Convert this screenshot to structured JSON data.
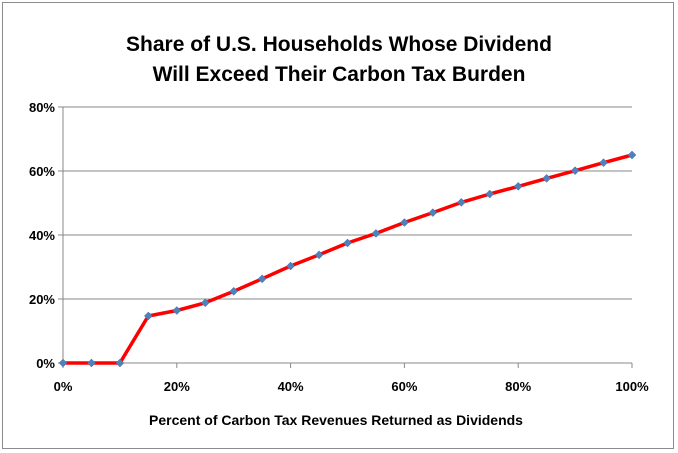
{
  "chart_data": {
    "type": "line",
    "title_line1": "Share of U.S. Households Whose Dividend",
    "title_line2": "Will Exceed Their Carbon Tax Burden",
    "xlabel": "Percent of Carbon Tax Revenues Returned as Dividends",
    "ylabel": "",
    "xlim": [
      0,
      100
    ],
    "ylim": [
      0,
      80
    ],
    "x_ticks": [
      0,
      20,
      40,
      60,
      80,
      100
    ],
    "x_tick_labels": [
      "0%",
      "20%",
      "40%",
      "60%",
      "80%",
      "100%"
    ],
    "y_ticks": [
      0,
      20,
      40,
      60,
      80
    ],
    "y_tick_labels": [
      "0%",
      "20%",
      "40%",
      "60%",
      "80%"
    ],
    "grid": "horizontal",
    "legend": "none",
    "line_color": "#ff0000",
    "marker_color": "#4f81bd",
    "series": [
      {
        "x": [
          0,
          5,
          10,
          15,
          20,
          25,
          30,
          35,
          40,
          45,
          50,
          55,
          60,
          65,
          70,
          75,
          80,
          85,
          90,
          95,
          100
        ],
        "values": [
          0,
          0,
          0,
          14.7,
          16.4,
          18.8,
          22.4,
          26.3,
          30.3,
          33.8,
          37.5,
          40.5,
          43.9,
          47.0,
          50.2,
          52.8,
          55.2,
          57.7,
          60.1,
          62.6,
          65.0
        ]
      }
    ]
  }
}
